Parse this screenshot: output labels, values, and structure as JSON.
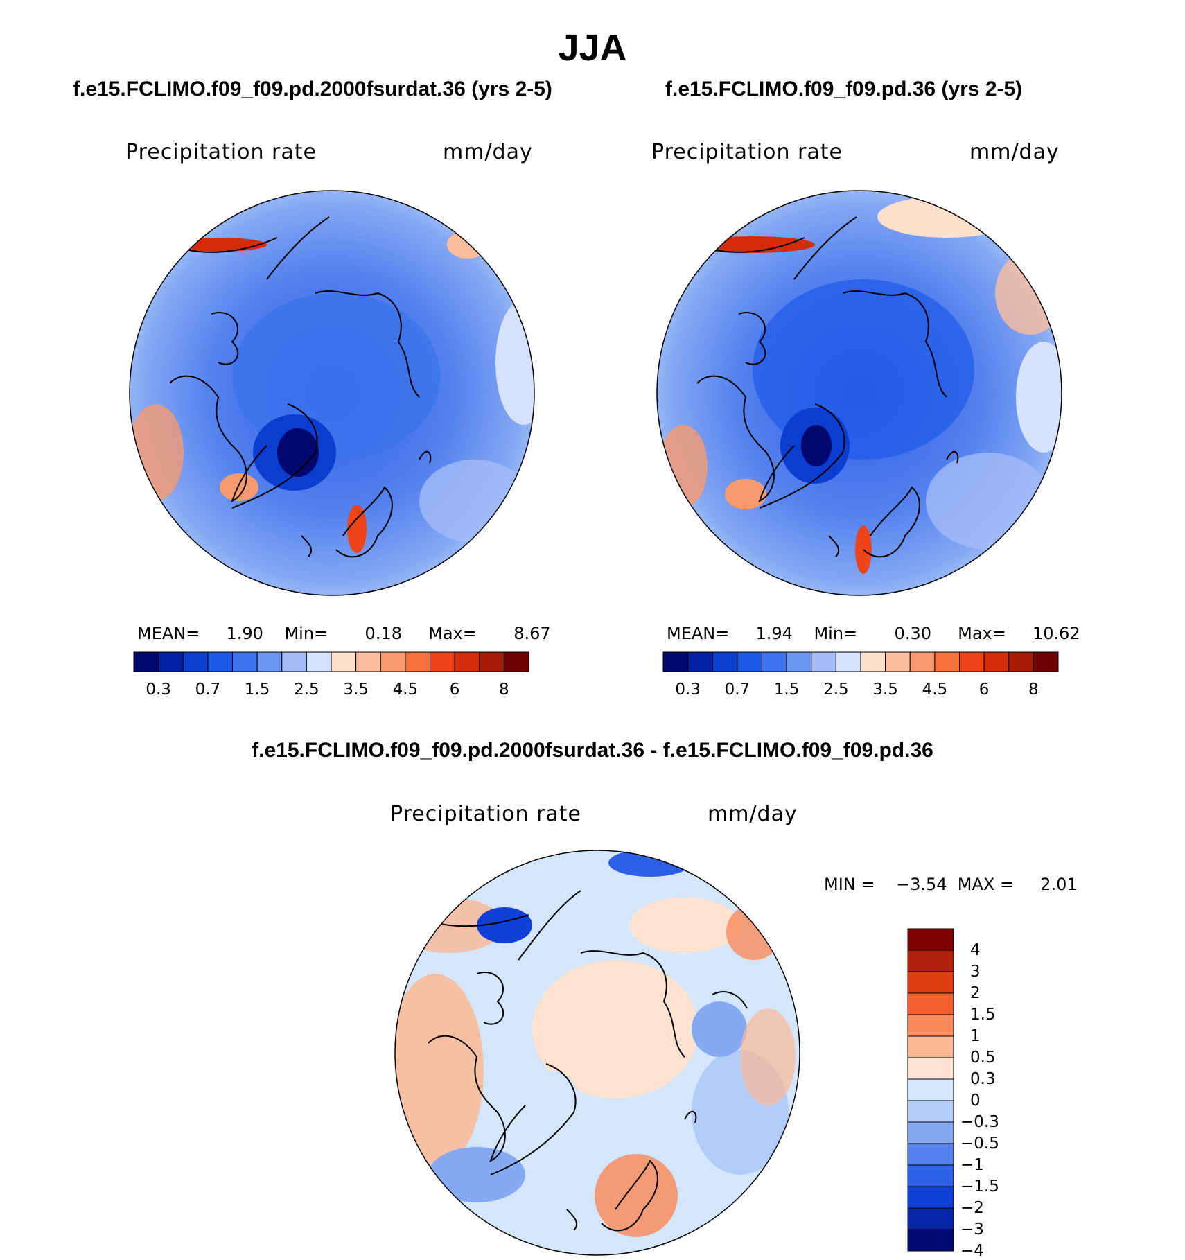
{
  "title": "JJA",
  "panels": [
    {
      "case": "f.e15.FCLIMO.f09_f09.pd.2000fsurdat.36 (yrs 2-5)",
      "variable": "Precipitation rate",
      "units": "mm/day",
      "stats_text": "MEAN=     1.90    Min=       0.18     Max=       8.67"
    },
    {
      "case": "f.e15.FCLIMO.f09_f09.pd.36 (yrs 2-5)",
      "variable": "Precipitation rate",
      "units": "mm/day",
      "stats_text": "MEAN=     1.94    Min=       0.30     Max=     10.62"
    }
  ],
  "colorbar": {
    "colors": [
      "#00086e",
      "#0320a5",
      "#0c3dd1",
      "#1e5ae8",
      "#3d73ec",
      "#6d96f2",
      "#a3bcf7",
      "#d4e3fb",
      "#fde0cc",
      "#fbbe9e",
      "#f79a6f",
      "#f5713a",
      "#ef4418",
      "#d42c0a",
      "#a61c04",
      "#700000"
    ],
    "labels": [
      "0.3",
      "0.7",
      "1.5",
      "2.5",
      "3.5",
      "4.5",
      "6",
      "8"
    ]
  },
  "diff": {
    "title": "f.e15.FCLIMO.f09_f09.pd.2000fsurdat.36 - f.e15.FCLIMO.f09_f09.pd.36",
    "variable": "Precipitation rate",
    "units": "mm/day",
    "minmax_text": "MIN =    −3.54  MAX =     2.01",
    "colorbar": {
      "colors_top_to_bottom": [
        "#7d0000",
        "#b0200a",
        "#df3c10",
        "#f45f2b",
        "#f98c5e",
        "#fbb895",
        "#fde2cf",
        "#d3e6fb",
        "#b2ccf9",
        "#86a9f4",
        "#5582ee",
        "#2d5ee6",
        "#0f3fd4",
        "#0626a8",
        "#000a72"
      ],
      "labels": [
        "4",
        "3",
        "2",
        "1.5",
        "1",
        "0.5",
        "0.3",
        "0",
        "−0.3",
        "−0.5",
        "−1",
        "−1.5",
        "−2",
        "−3",
        "−4"
      ]
    }
  }
}
